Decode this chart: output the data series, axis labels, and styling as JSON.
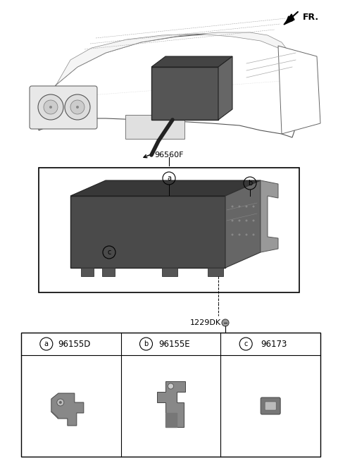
{
  "background_color": "#ffffff",
  "fr_label": "FR.",
  "main_part_label": "96560F",
  "detail_label": "1229DK",
  "box_parts": [
    {
      "id": "a",
      "label": "96155D"
    },
    {
      "id": "b",
      "label": "96155E"
    },
    {
      "id": "c",
      "label": "96173"
    }
  ],
  "fig_width": 4.8,
  "fig_height": 6.57,
  "dpi": 100
}
